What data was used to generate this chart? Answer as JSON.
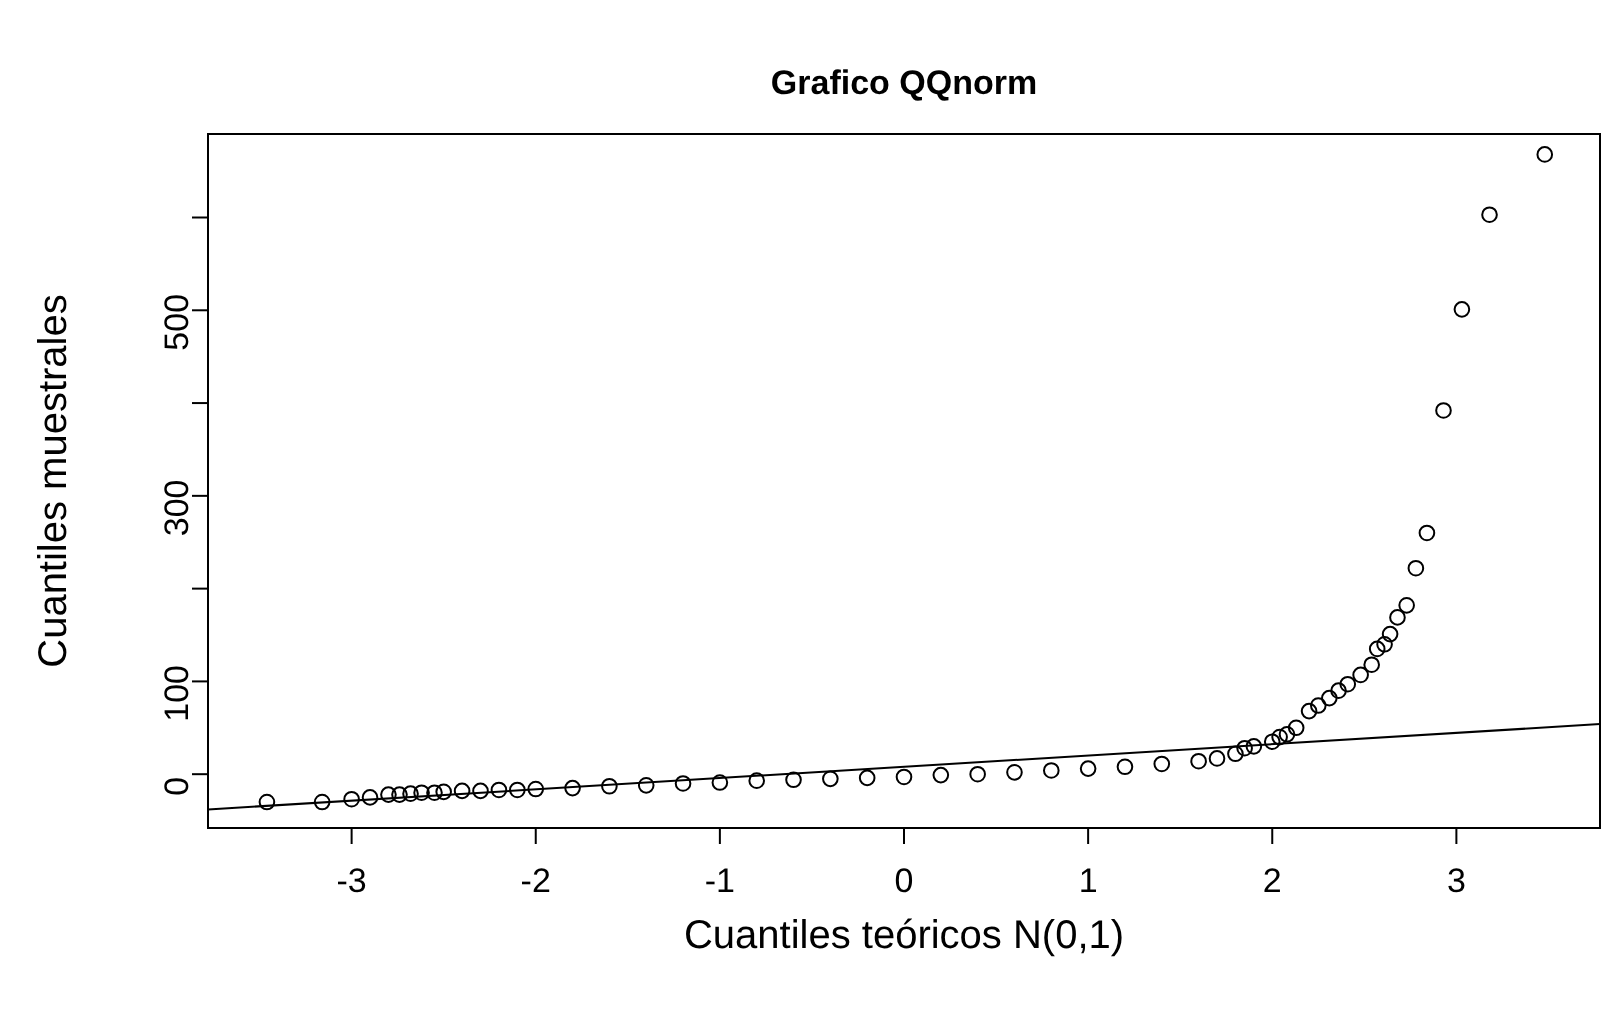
{
  "chart_data": {
    "type": "scatter",
    "title": "Grafico QQnorm",
    "xlabel": "Cuantiles teóricos N(0,1)",
    "ylabel": "Cuantiles muestrales",
    "xlim": [
      -3.78,
      3.78
    ],
    "xticks": [
      -3,
      -2,
      -1,
      0,
      1,
      2,
      3
    ],
    "ylim": [
      -58,
      690
    ],
    "yticks": [
      0,
      100,
      {
        "value": 200,
        "label": null
      },
      300,
      {
        "value": 400,
        "label": null
      },
      500,
      {
        "value": 600,
        "label": null
      }
    ],
    "grid": false,
    "marker": "circle",
    "series": [
      {
        "color": "#000000",
        "x": [
          -3.46,
          -3.16,
          -3.0,
          -2.9,
          -2.8,
          -2.74,
          -2.68,
          -2.62,
          -2.55,
          -2.5,
          -2.4,
          -2.3,
          -2.2,
          -2.1,
          -2.0,
          -1.8,
          -1.6,
          -1.4,
          -1.2,
          -1.0,
          -0.8,
          -0.6,
          -0.4,
          -0.2,
          0,
          0.2,
          0.4,
          0.6,
          0.8,
          1.0,
          1.2,
          1.4,
          1.6,
          1.7,
          1.8,
          1.85,
          1.9,
          2.0,
          2.04,
          2.08,
          2.13,
          2.2,
          2.25,
          2.31,
          2.36,
          2.41,
          2.48,
          2.54,
          2.57,
          2.61,
          2.64,
          2.68,
          2.73,
          2.78,
          2.84,
          2.93,
          3.03,
          3.18,
          3.48
        ],
        "values": [
          -30,
          -30,
          -27,
          -25,
          -22,
          -22,
          -21,
          -20,
          -20,
          -19,
          -18,
          -18,
          -17,
          -17,
          -16,
          -15,
          -13,
          -12,
          -10,
          -9,
          -7,
          -6,
          -5,
          -4,
          -3,
          -1,
          0,
          2,
          4,
          6,
          8,
          11,
          14,
          17,
          22,
          28,
          30,
          35,
          40,
          43,
          50,
          68,
          74,
          82,
          90,
          97,
          107,
          118,
          135,
          140,
          151,
          169,
          182,
          222,
          260,
          392,
          501,
          603,
          668
        ]
      },
      {
        "type": "line",
        "color": "#000000",
        "line_style": "solid",
        "marker": "none",
        "x": [
          -3.78,
          3.78
        ],
        "values": [
          -38,
          54
        ]
      }
    ]
  }
}
